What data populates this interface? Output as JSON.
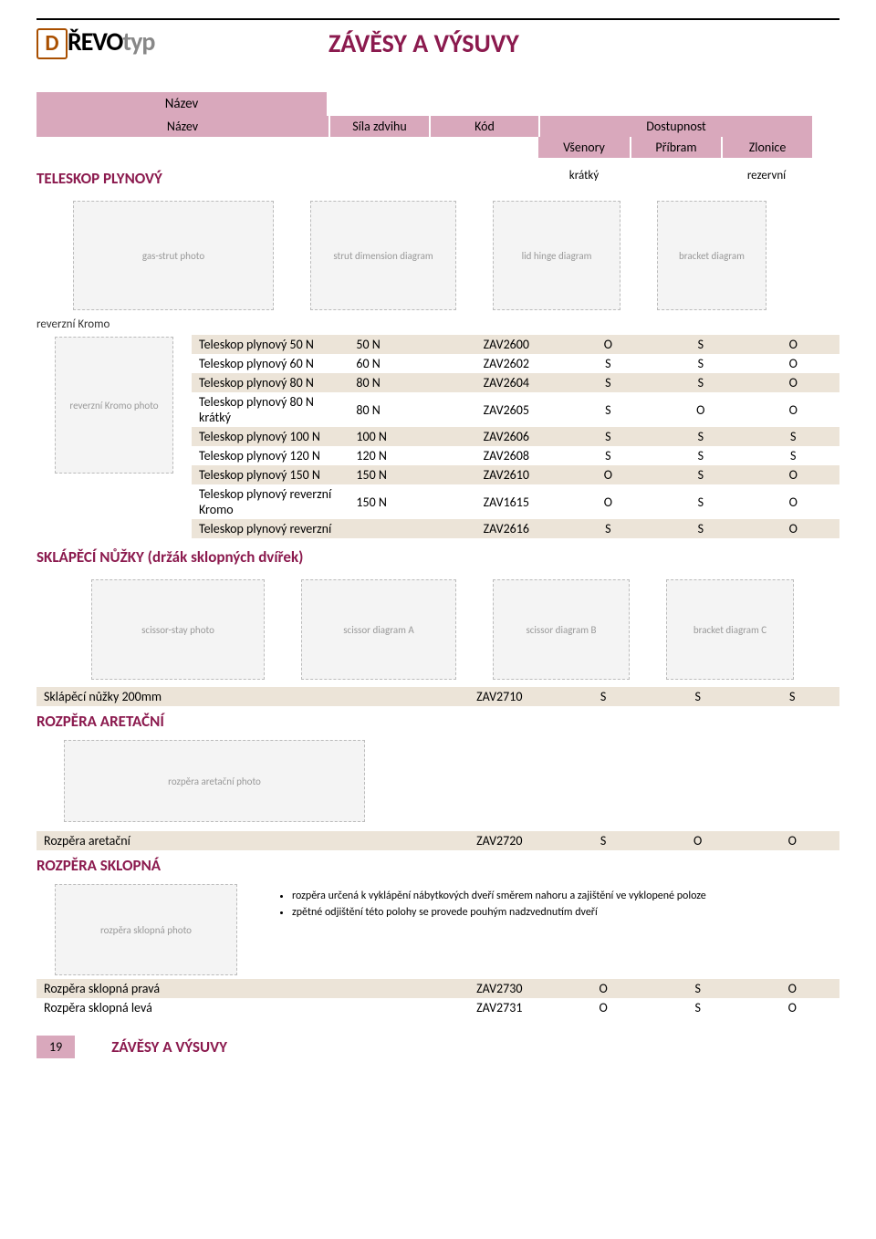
{
  "brand": {
    "d": "D",
    "revo": "ŘEVO",
    "typ": "typ"
  },
  "page_title": "ZÁVĚSY A VÝSUVY",
  "header": {
    "nazev": "Název",
    "sila": "Síla zdvihu",
    "kod": "Kód",
    "dostupnost": "Dostupnost",
    "vsenory": "Všenory",
    "pribram": "Příbram",
    "zlonice": "Zlonice"
  },
  "sections": {
    "teleskop": "TELESKOP PLYNOVÝ",
    "kratky": "krátký",
    "rezervni": "rezervní",
    "reverzni_kromo": "reverzní Kromo",
    "sklapeci": "SKLÁPĚCÍ NŮŽKY (držák sklopných dvířek)",
    "rozpera_aretacni": "ROZPĚRA ARETAČNÍ",
    "rozpera_sklopna": "ROZPĚRA SKLOPNÁ"
  },
  "teleskop_rows": [
    {
      "name": "Teleskop plynový 50 N",
      "force": "50 N",
      "code": "ZAV2600",
      "d1": "O",
      "d2": "S",
      "d3": "O",
      "alt": true
    },
    {
      "name": "Teleskop plynový 60 N",
      "force": "60 N",
      "code": "ZAV2602",
      "d1": "S",
      "d2": "S",
      "d3": "O",
      "alt": false
    },
    {
      "name": "Teleskop plynový 80 N",
      "force": "80 N",
      "code": "ZAV2604",
      "d1": "S",
      "d2": "S",
      "d3": "O",
      "alt": true
    },
    {
      "name": "Teleskop plynový 80 N krátký",
      "force": "80 N",
      "code": "ZAV2605",
      "d1": "S",
      "d2": "O",
      "d3": "O",
      "alt": false
    },
    {
      "name": "Teleskop plynový 100 N",
      "force": "100 N",
      "code": "ZAV2606",
      "d1": "S",
      "d2": "S",
      "d3": "S",
      "alt": true
    },
    {
      "name": "Teleskop plynový 120 N",
      "force": "120 N",
      "code": "ZAV2608",
      "d1": "S",
      "d2": "S",
      "d3": "S",
      "alt": false
    },
    {
      "name": "Teleskop plynový 150 N",
      "force": "150 N",
      "code": "ZAV2610",
      "d1": "O",
      "d2": "S",
      "d3": "O",
      "alt": true
    },
    {
      "name": "Teleskop plynový reverzní Kromo",
      "force": "150 N",
      "code": "ZAV1615",
      "d1": "O",
      "d2": "S",
      "d3": "O",
      "alt": false
    },
    {
      "name": "Teleskop plynový reverzní",
      "force": "",
      "code": "ZAV2616",
      "d1": "S",
      "d2": "S",
      "d3": "O",
      "alt": true
    }
  ],
  "sklapeci_rows": [
    {
      "name": "Sklápěcí nůžky 200mm",
      "force": "",
      "code": "ZAV2710",
      "d1": "S",
      "d2": "S",
      "d3": "S",
      "alt": true
    }
  ],
  "aretacni_rows": [
    {
      "name": "Rozpěra aretační",
      "force": "",
      "code": "ZAV2720",
      "d1": "S",
      "d2": "O",
      "d3": "O",
      "alt": true
    }
  ],
  "notes": [
    "rozpěra určená k vyklápění nábytkových dveří směrem nahoru a zajištění ve vyklopené poloze",
    "zpětné odjištění této polohy se provede pouhým nadzvednutím dveří"
  ],
  "sklopna_rows": [
    {
      "name": "Rozpěra sklopná pravá",
      "force": "",
      "code": "ZAV2730",
      "d1": "O",
      "d2": "S",
      "d3": "O",
      "alt": true
    },
    {
      "name": "Rozpěra sklopná levá",
      "force": "",
      "code": "ZAV2731",
      "d1": "O",
      "d2": "S",
      "d3": "O",
      "alt": false
    }
  ],
  "footer": {
    "page": "19",
    "title": "ZÁVĚSY A VÝSUVY"
  },
  "colors": {
    "accent": "#8b1a4e",
    "strip": "#d9a8bc",
    "alt_row": "#ece4d8"
  },
  "diagram_placeholders": {
    "strut_photo": "gas-strut photo",
    "strut_diagram": "strut dimension diagram",
    "hinge_diagram1": "lid hinge diagram",
    "hinge_diagram2": "bracket diagram",
    "reverzni_photo": "reverzní Kromo photo",
    "scissor_photo": "scissor-stay photo",
    "scissor_d1": "scissor diagram A",
    "scissor_d2": "scissor diagram B",
    "scissor_d3": "bracket diagram C",
    "aretacni_photo": "rozpěra aretační photo",
    "sklopna_photo": "rozpěra sklopná photo"
  }
}
